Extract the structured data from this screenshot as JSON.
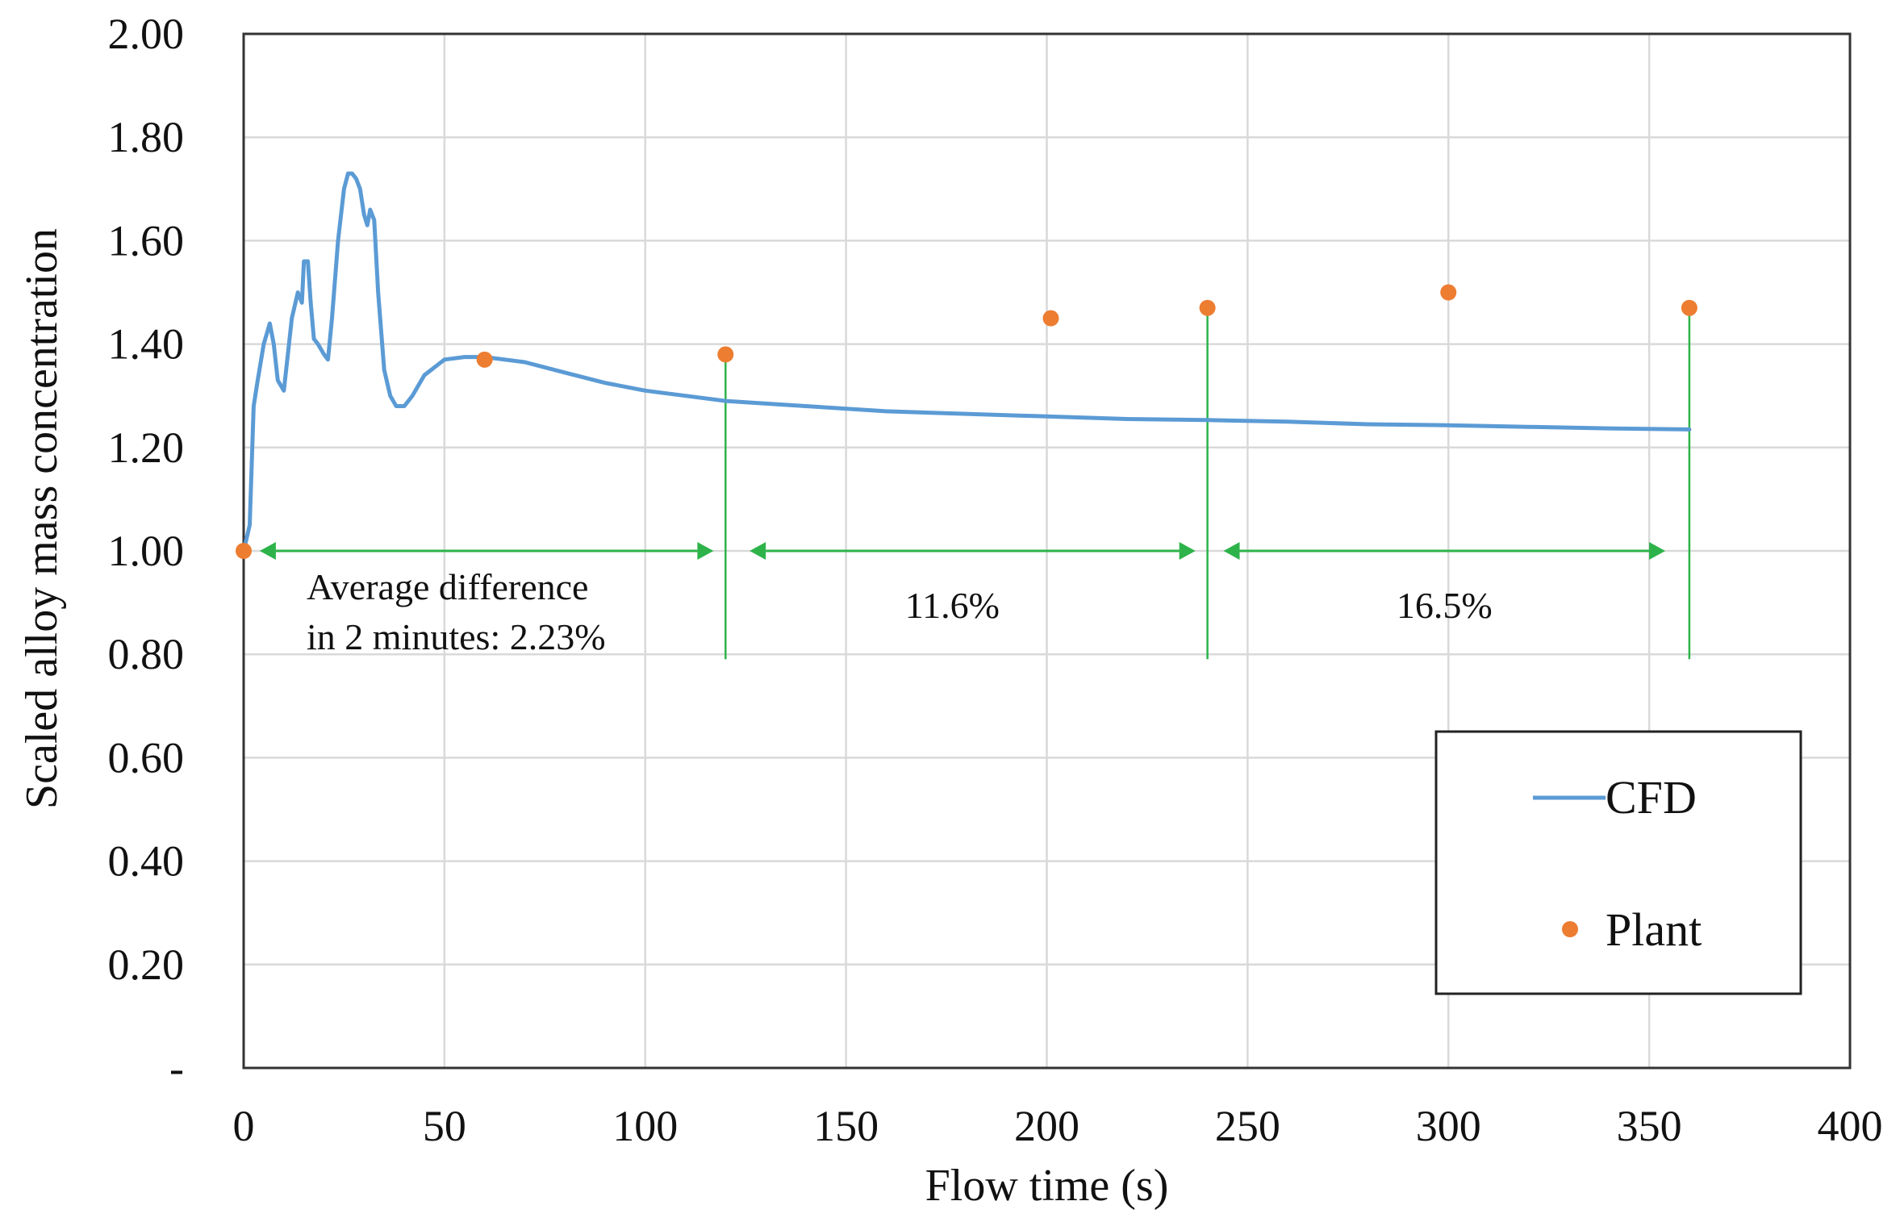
{
  "chart_data": {
    "type": "line",
    "title": "",
    "xlabel": "Flow time (s)",
    "ylabel": "Scaled alloy mass concentration",
    "xlim": [
      0,
      400
    ],
    "ylim": [
      0,
      2.0
    ],
    "x_ticks": [
      0,
      50,
      100,
      150,
      200,
      250,
      300,
      350,
      400
    ],
    "x_tick_labels": [
      "0",
      "50",
      "100",
      "150",
      "200",
      "250",
      "300",
      "350",
      "400"
    ],
    "y_ticks": [
      0,
      0.2,
      0.4,
      0.6,
      0.8,
      1.0,
      1.2,
      1.4,
      1.6,
      1.8,
      2.0
    ],
    "y_tick_labels": [
      "-",
      "0.20",
      "0.40",
      "0.60",
      "0.80",
      "1.00",
      "1.20",
      "1.40",
      "1.60",
      "1.80",
      "2.00"
    ],
    "grid": true,
    "legend_position": "bottom-right",
    "series": [
      {
        "name": "CFD",
        "kind": "line",
        "color": "#5b9bd5",
        "x": [
          0,
          1.5,
          2.5,
          3.5,
          5,
          6.5,
          7.5,
          8.5,
          10,
          11,
          12,
          13.5,
          14.5,
          15,
          16,
          16.7,
          17.5,
          18.5,
          20,
          21,
          22,
          23.5,
          25,
          26,
          27,
          28,
          29,
          30,
          30.8,
          31.5,
          32.5,
          33.5,
          35,
          36.5,
          38,
          40,
          42,
          45,
          50,
          55,
          60,
          70,
          80,
          90,
          100,
          110,
          120,
          140,
          160,
          180,
          200,
          220,
          240,
          260,
          280,
          300,
          320,
          340,
          360
        ],
        "y": [
          1.0,
          1.05,
          1.28,
          1.33,
          1.4,
          1.44,
          1.4,
          1.33,
          1.31,
          1.38,
          1.45,
          1.5,
          1.48,
          1.56,
          1.56,
          1.48,
          1.41,
          1.4,
          1.38,
          1.37,
          1.45,
          1.6,
          1.7,
          1.73,
          1.73,
          1.72,
          1.7,
          1.65,
          1.63,
          1.66,
          1.64,
          1.5,
          1.35,
          1.3,
          1.28,
          1.28,
          1.3,
          1.34,
          1.37,
          1.375,
          1.375,
          1.365,
          1.345,
          1.325,
          1.31,
          1.3,
          1.29,
          1.28,
          1.27,
          1.265,
          1.26,
          1.255,
          1.253,
          1.25,
          1.245,
          1.243,
          1.24,
          1.237,
          1.235
        ]
      },
      {
        "name": "Plant",
        "kind": "scatter",
        "color": "#ed7d31",
        "x": [
          0,
          60,
          120,
          201,
          240,
          300,
          360
        ],
        "y": [
          1.0,
          1.37,
          1.38,
          1.45,
          1.47,
          1.5,
          1.47
        ]
      }
    ],
    "annotations": {
      "vlines": [
        {
          "x": 120,
          "y0": 0.8,
          "y1": 1.38
        },
        {
          "x": 240,
          "y0": 0.8,
          "y1": 1.47
        },
        {
          "x": 360,
          "y0": 0.8,
          "y1": 1.47
        }
      ],
      "arrows": [
        {
          "x0": 4,
          "x1": 117,
          "y": 1.0
        },
        {
          "x0": 126,
          "x1": 237,
          "y": 1.0
        },
        {
          "x0": 244,
          "x1": 354,
          "y": 1.0
        }
      ],
      "color": "#2db34a",
      "texts": [
        {
          "line1": "Average  difference",
          "line2": "in 2 minutes: 2.23%"
        },
        {
          "line1": "11.6%"
        },
        {
          "line1": "16.5%"
        }
      ]
    },
    "legend": {
      "cfd_label": "CFD",
      "plant_label": "Plant"
    }
  }
}
